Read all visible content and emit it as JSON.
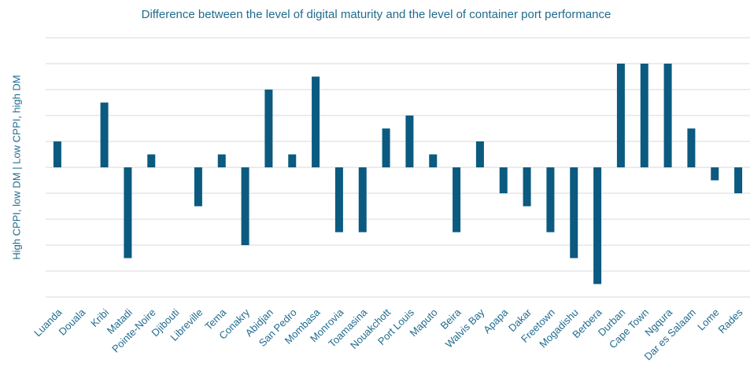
{
  "chart_data": {
    "type": "bar",
    "title": "Difference between the level of digital maturity and the level of container port performance",
    "y_label": "High CPPI, low DM | Low CPPI, high DM",
    "categories": [
      "Luanda",
      "Douala",
      "Kribi",
      "Matadi",
      "Pointe-Noire",
      "Djibouti",
      "Libreville",
      "Tema",
      "Conakry",
      "Abidjan",
      "San Pedro",
      "Mombasa",
      "Monrovia",
      "Toamasina",
      "Nouakchott",
      "Port Louis",
      "Maputo",
      "Beira",
      "Walvis Bay",
      "Apapa",
      "Dakar",
      "Freetown",
      "Mogadishu",
      "Berbera",
      "Durban",
      "Cape Town",
      "Ngqura",
      "Dar es Salaam",
      "Lome",
      "Rades"
    ],
    "values": [
      1,
      0,
      2.5,
      -3.5,
      0.5,
      0,
      -1.5,
      0.5,
      -3,
      3,
      0.5,
      3.5,
      -2.5,
      -2.5,
      1.5,
      2,
      0.5,
      -2.5,
      1,
      -1,
      -1.5,
      -2.5,
      -3.5,
      -4.5,
      4,
      4,
      4,
      1.5,
      -0.5,
      -1
    ],
    "color": "#0b5a80",
    "ylim": [
      -5,
      5
    ],
    "yticks": [
      -5,
      -4,
      -3,
      -2,
      -1,
      0,
      1,
      2,
      3,
      4,
      5
    ],
    "grid": true
  }
}
